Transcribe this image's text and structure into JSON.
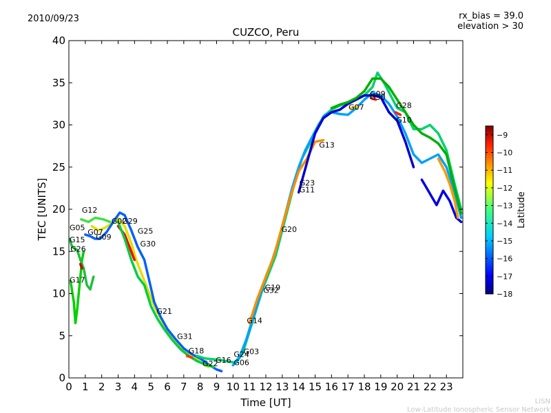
{
  "chart_data": {
    "type": "scatter",
    "date": "2010/09/23",
    "title": "CUZCO, Peru",
    "info_lines": [
      "rx_bias = 39.0",
      "elevation > 30"
    ],
    "xlabel": "Time [UT]",
    "ylabel": "TEC [UNITS]",
    "xlim": [
      0,
      24
    ],
    "ylim": [
      0,
      40
    ],
    "x_ticks": [
      0,
      1,
      2,
      3,
      4,
      5,
      6,
      7,
      8,
      9,
      10,
      11,
      12,
      13,
      14,
      15,
      16,
      17,
      18,
      19,
      20,
      21,
      22,
      23
    ],
    "y_ticks": [
      0,
      5,
      10,
      15,
      20,
      25,
      30,
      35,
      40
    ],
    "grid": false,
    "colorbar": {
      "label": "Latitude",
      "range": [
        -18,
        -8.5
      ],
      "ticks": [
        -9,
        -10,
        -11,
        -12,
        -13,
        -14,
        -15,
        -16,
        -17,
        -18
      ],
      "colormap": [
        "#00007f",
        "#0000ff",
        "#007fff",
        "#00ffff",
        "#7fff7f",
        "#ffff00",
        "#ff7f00",
        "#ff0000",
        "#7f0000"
      ]
    },
    "credit": [
      "LISN",
      "Low-Latitude Ionospheric Sensor Network"
    ],
    "series": [
      {
        "color": "#00d000",
        "points": [
          [
            0.1,
            11.5
          ],
          [
            0.3,
            9
          ],
          [
            0.4,
            6.5
          ],
          [
            0.5,
            8
          ],
          [
            0.6,
            10
          ],
          [
            0.7,
            12
          ],
          [
            0.8,
            14
          ],
          [
            0.9,
            15
          ]
        ]
      },
      {
        "color": "#1fbf3f",
        "points": [
          [
            0.05,
            16.5
          ],
          [
            0.2,
            15.5
          ],
          [
            0.5,
            15.2
          ],
          [
            0.7,
            14
          ],
          [
            0.9,
            13
          ],
          [
            1.1,
            11
          ],
          [
            1.3,
            10.5
          ],
          [
            1.5,
            12
          ]
        ]
      },
      {
        "color": "#40e040",
        "points": [
          [
            0.75,
            18.8
          ],
          [
            1.2,
            18.5
          ],
          [
            1.6,
            19
          ],
          [
            2.1,
            18.8
          ],
          [
            2.5,
            18.5
          ]
        ]
      },
      {
        "color": "#e0e000",
        "points": [
          [
            1.4,
            18
          ],
          [
            1.8,
            17.5
          ],
          [
            2.2,
            17.8
          ],
          [
            2.6,
            18.3
          ],
          [
            3.0,
            18.9
          ],
          [
            3.4,
            18.0
          ],
          [
            3.8,
            16
          ],
          [
            4.1,
            14
          ],
          [
            4.5,
            12
          ],
          [
            4.9,
            10
          ],
          [
            5.2,
            8.5
          ],
          [
            5.6,
            7
          ],
          [
            6.0,
            5.6
          ],
          [
            6.5,
            4.2
          ],
          [
            7.0,
            3.3
          ],
          [
            7.5,
            2.6
          ],
          [
            8.0,
            1.9
          ],
          [
            8.5,
            1.3
          ]
        ]
      },
      {
        "color": "#0060ff",
        "points": [
          [
            1.0,
            17
          ],
          [
            1.3,
            16.8
          ],
          [
            1.6,
            16.5
          ],
          [
            1.9,
            16.5
          ],
          [
            2.3,
            17.3
          ],
          [
            2.7,
            18.5
          ],
          [
            3.1,
            19.6
          ],
          [
            3.4,
            19.3
          ],
          [
            3.8,
            17.5
          ],
          [
            4.2,
            15.5
          ],
          [
            4.6,
            14
          ],
          [
            4.9,
            11.5
          ],
          [
            5.2,
            9
          ],
          [
            5.6,
            7.2
          ],
          [
            6.0,
            5.8
          ],
          [
            6.5,
            4.6
          ],
          [
            7.0,
            3.5
          ],
          [
            7.5,
            2.8
          ],
          [
            8.0,
            2.3
          ],
          [
            8.5,
            1.6
          ],
          [
            9.0,
            1.0
          ],
          [
            9.3,
            0.8
          ]
        ]
      },
      {
        "color": "#ff0000",
        "points": [
          [
            3.0,
            18
          ],
          [
            3.4,
            17
          ],
          [
            3.7,
            15.5
          ],
          [
            3.9,
            14.5
          ],
          [
            4.0,
            14.0
          ]
        ]
      },
      {
        "color": "#00cc44",
        "points": [
          [
            3.0,
            18.5
          ],
          [
            3.4,
            16.5
          ],
          [
            3.8,
            14
          ],
          [
            4.2,
            12
          ],
          [
            4.6,
            11
          ],
          [
            5.0,
            8.5
          ],
          [
            5.4,
            7
          ],
          [
            5.8,
            5.8
          ],
          [
            6.3,
            4.5
          ],
          [
            6.8,
            3.4
          ],
          [
            7.3,
            2.6
          ],
          [
            7.8,
            2.0
          ],
          [
            8.3,
            1.6
          ],
          [
            8.8,
            1.3
          ]
        ]
      },
      {
        "color": "#00d070",
        "points": [
          [
            7.8,
            2.6
          ],
          [
            8.3,
            2.3
          ],
          [
            8.8,
            2.2
          ],
          [
            9.3,
            2.1
          ],
          [
            9.8,
            1.9
          ],
          [
            10.2,
            1.8
          ],
          [
            10.6,
            3
          ],
          [
            11.0,
            5.5
          ],
          [
            11.4,
            8
          ],
          [
            11.8,
            10.5
          ],
          [
            12.2,
            12.5
          ],
          [
            12.6,
            14.5
          ],
          [
            13.0,
            17.5
          ],
          [
            13.4,
            20.5
          ],
          [
            13.8,
            23.5
          ],
          [
            14.2,
            26
          ],
          [
            14.6,
            27.5
          ],
          [
            15.0,
            29
          ],
          [
            15.5,
            31
          ],
          [
            16.0,
            31.8
          ],
          [
            16.5,
            32.3
          ],
          [
            17.0,
            32.6
          ],
          [
            17.5,
            33
          ],
          [
            18.0,
            33.5
          ],
          [
            18.5,
            34.5
          ],
          [
            18.8,
            36.2
          ],
          [
            19.2,
            35
          ],
          [
            19.6,
            33.5
          ],
          [
            20.0,
            32
          ],
          [
            20.5,
            31.5
          ],
          [
            21.0,
            29.5
          ],
          [
            21.5,
            29.5
          ],
          [
            22.0,
            30
          ],
          [
            22.5,
            29
          ],
          [
            23.0,
            27
          ],
          [
            23.5,
            23
          ],
          [
            23.9,
            20
          ]
        ]
      },
      {
        "color": "#00a0ff",
        "points": [
          [
            10.0,
            1.5
          ],
          [
            10.4,
            2.5
          ],
          [
            10.8,
            4.5
          ],
          [
            11.2,
            7
          ],
          [
            11.6,
            9.5
          ],
          [
            12.0,
            12
          ],
          [
            12.4,
            14
          ],
          [
            12.8,
            16.5
          ],
          [
            13.2,
            19.5
          ],
          [
            13.6,
            22.5
          ],
          [
            14.0,
            25
          ],
          [
            14.4,
            27
          ],
          [
            14.8,
            28.5
          ],
          [
            15.2,
            30
          ],
          [
            15.6,
            31.2
          ],
          [
            16.0,
            31.5
          ],
          [
            16.5,
            31.3
          ],
          [
            17.0,
            31.2
          ],
          [
            17.5,
            32
          ],
          [
            18.0,
            33
          ],
          [
            18.5,
            33.8
          ],
          [
            19.0,
            33.5
          ],
          [
            19.5,
            32.5
          ],
          [
            20.0,
            31
          ],
          [
            20.5,
            29
          ],
          [
            21.0,
            26.5
          ],
          [
            21.5,
            25.5
          ],
          [
            22.0,
            26
          ],
          [
            22.5,
            26.5
          ],
          [
            23.0,
            25
          ],
          [
            23.5,
            22
          ],
          [
            23.9,
            19
          ]
        ]
      },
      {
        "color": "#ff8c00",
        "points": [
          [
            11.0,
            6.5
          ],
          [
            11.5,
            9.5
          ],
          [
            12.0,
            12
          ],
          [
            12.5,
            14.5
          ],
          [
            13.0,
            18
          ],
          [
            13.5,
            21.5
          ],
          [
            14.0,
            24.5
          ],
          [
            14.5,
            26
          ],
          [
            15.0,
            28
          ],
          [
            15.5,
            28.2
          ]
        ]
      },
      {
        "color": "#0000d0",
        "points": [
          [
            14.0,
            22
          ],
          [
            14.5,
            25.5
          ],
          [
            15.0,
            29
          ],
          [
            15.5,
            30.8
          ],
          [
            16.0,
            31.5
          ],
          [
            16.5,
            31.8
          ],
          [
            17.0,
            32.5
          ],
          [
            17.5,
            33
          ],
          [
            18.0,
            33.5
          ],
          [
            18.5,
            33.5
          ],
          [
            19.0,
            33.3
          ],
          [
            19.5,
            31.5
          ],
          [
            20.0,
            30.5
          ],
          [
            20.5,
            28
          ],
          [
            21.0,
            25
          ]
        ]
      },
      {
        "color": "#00b000",
        "points": [
          [
            16.0,
            32
          ],
          [
            16.5,
            32.4
          ],
          [
            17.0,
            32.7
          ],
          [
            17.5,
            33.2
          ],
          [
            18.0,
            34
          ],
          [
            18.5,
            35.5
          ],
          [
            19.0,
            35.5
          ],
          [
            19.5,
            34.5
          ],
          [
            20.0,
            33
          ],
          [
            20.5,
            31.5
          ],
          [
            21.0,
            30
          ],
          [
            21.5,
            29
          ],
          [
            22.0,
            28.5
          ],
          [
            22.5,
            27.8
          ],
          [
            23.0,
            26.5
          ],
          [
            23.5,
            22.5
          ],
          [
            23.9,
            19.5
          ]
        ]
      },
      {
        "color": "#0000e0",
        "points": [
          [
            21.5,
            23.5
          ],
          [
            21.8,
            22.5
          ],
          [
            22.1,
            21.5
          ],
          [
            22.4,
            20.5
          ],
          [
            22.8,
            22.2
          ],
          [
            23.2,
            21
          ],
          [
            23.6,
            19
          ],
          [
            23.9,
            18.5
          ]
        ]
      },
      {
        "color": "#ff9900",
        "points": [
          [
            22.5,
            26
          ],
          [
            22.9,
            24.5
          ],
          [
            23.2,
            23
          ],
          [
            23.5,
            21
          ],
          [
            23.7,
            19
          ]
        ]
      },
      {
        "color": "#ff2200",
        "points": [
          [
            18.4,
            33.2
          ],
          [
            18.7,
            33.0
          ]
        ]
      },
      {
        "color": "#ff2200",
        "points": [
          [
            19.9,
            31.5
          ],
          [
            20.2,
            31.2
          ]
        ]
      },
      {
        "color": "#ffd000",
        "points": [
          [
            17.2,
            32
          ],
          [
            17.6,
            32.2
          ]
        ]
      },
      {
        "color": "#ff3300",
        "points": [
          [
            7.2,
            2.6
          ],
          [
            7.5,
            2.4
          ]
        ]
      },
      {
        "color": "#cc0000",
        "points": [
          [
            0.7,
            13.5
          ],
          [
            0.8,
            13.0
          ]
        ]
      }
    ],
    "labels": [
      {
        "text": "G12",
        "x": 0.75,
        "y": 19.6
      },
      {
        "text": "G05",
        "x": 0.0,
        "y": 17.5
      },
      {
        "text": "G15",
        "x": 0.0,
        "y": 16.1
      },
      {
        "text": "G26",
        "x": 0.05,
        "y": 15.0
      },
      {
        "text": "G17",
        "x": 0.0,
        "y": 11.3
      },
      {
        "text": "G07",
        "x": 1.1,
        "y": 17.0
      },
      {
        "text": "G09",
        "x": 1.6,
        "y": 16.4
      },
      {
        "text": "G02",
        "x": 2.55,
        "y": 18.3
      },
      {
        "text": "G29",
        "x": 3.2,
        "y": 18.3
      },
      {
        "text": "G25",
        "x": 4.15,
        "y": 17.1
      },
      {
        "text": "G30",
        "x": 4.3,
        "y": 15.6
      },
      {
        "text": "G21",
        "x": 5.3,
        "y": 7.6
      },
      {
        "text": "G31",
        "x": 6.55,
        "y": 4.6
      },
      {
        "text": "G18",
        "x": 7.25,
        "y": 2.9
      },
      {
        "text": "G22",
        "x": 8.1,
        "y": 1.4
      },
      {
        "text": "G16",
        "x": 8.9,
        "y": 1.8
      },
      {
        "text": "G24",
        "x": 10.0,
        "y": 2.5
      },
      {
        "text": "G03",
        "x": 10.6,
        "y": 2.8
      },
      {
        "text": "G06",
        "x": 10.0,
        "y": 1.5
      },
      {
        "text": "G14",
        "x": 10.8,
        "y": 6.5
      },
      {
        "text": "G19",
        "x": 11.9,
        "y": 10.4
      },
      {
        "text": "G32",
        "x": 11.8,
        "y": 10.1
      },
      {
        "text": "G20",
        "x": 12.9,
        "y": 17.3
      },
      {
        "text": "G23",
        "x": 14.0,
        "y": 22.8
      },
      {
        "text": "G11",
        "x": 14.0,
        "y": 22.0
      },
      {
        "text": "G13",
        "x": 15.2,
        "y": 27.3
      },
      {
        "text": "G07",
        "x": 17.0,
        "y": 31.8
      },
      {
        "text": "G09",
        "x": 18.3,
        "y": 33.4
      },
      {
        "text": "G30",
        "x": 18.3,
        "y": 33.0
      },
      {
        "text": "G28",
        "x": 19.9,
        "y": 32.0
      },
      {
        "text": "G10",
        "x": 19.9,
        "y": 30.3
      }
    ]
  }
}
